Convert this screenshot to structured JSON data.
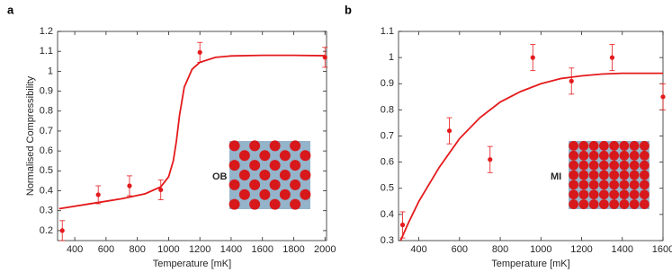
{
  "chart_data": [
    {
      "type": "scatter",
      "panel_label": "a",
      "xlabel": "Temperature [mK]",
      "ylabel": "Normalised Compressibility",
      "annotation": "OB",
      "xlim": [
        290,
        2010
      ],
      "xticks": [
        400,
        600,
        800,
        1000,
        1200,
        1400,
        1600,
        1800,
        2000
      ],
      "ylim": [
        0.15,
        1.2
      ],
      "yticks": [
        0.2,
        0.3,
        0.4,
        0.5,
        0.6,
        0.7,
        0.8,
        0.9,
        1,
        1.1,
        1.2
      ],
      "series": [
        {
          "type": "line",
          "color": "#e41a1c",
          "x": [
            300,
            500,
            700,
            850,
            950,
            1000,
            1030,
            1050,
            1070,
            1100,
            1150,
            1200,
            1300,
            1400,
            1600,
            1800,
            2000
          ],
          "values": [
            0.31,
            0.335,
            0.36,
            0.385,
            0.42,
            0.47,
            0.55,
            0.65,
            0.78,
            0.92,
            1.01,
            1.045,
            1.07,
            1.077,
            1.08,
            1.08,
            1.078
          ]
        },
        {
          "type": "errorbar",
          "color": "#e41a1c",
          "x": [
            320,
            550,
            750,
            950,
            1200,
            2000
          ],
          "values": [
            0.2,
            0.38,
            0.425,
            0.405,
            1.095,
            1.07
          ],
          "errors": [
            0.05,
            0.045,
            0.05,
            0.05,
            0.05,
            0.05
          ]
        }
      ]
    },
    {
      "type": "scatter",
      "panel_label": "b",
      "xlabel": "Temperature [mK]",
      "annotation": "MI",
      "xlim": [
        300,
        1600
      ],
      "xticks": [
        400,
        600,
        800,
        1000,
        1200,
        1400,
        1600
      ],
      "ylim": [
        0.3,
        1.1
      ],
      "yticks": [
        0.3,
        0.4,
        0.5,
        0.6,
        0.7,
        0.8,
        0.9,
        1,
        1.1
      ],
      "series": [
        {
          "type": "line",
          "color": "#e41a1c",
          "x": [
            310,
            350,
            400,
            500,
            600,
            700,
            800,
            900,
            1000,
            1100,
            1200,
            1300,
            1400,
            1500,
            1600
          ],
          "values": [
            0.3,
            0.37,
            0.45,
            0.58,
            0.69,
            0.77,
            0.83,
            0.87,
            0.9,
            0.92,
            0.93,
            0.937,
            0.94,
            0.94,
            0.94
          ]
        },
        {
          "type": "errorbar",
          "color": "#e41a1c",
          "x": [
            320,
            550,
            750,
            960,
            1150,
            1350,
            1600
          ],
          "values": [
            0.36,
            0.72,
            0.61,
            1.0,
            0.91,
            1.0,
            0.85
          ],
          "errors": [
            0.05,
            0.05,
            0.05,
            0.05,
            0.05,
            0.05,
            0.05
          ]
        }
      ]
    }
  ]
}
